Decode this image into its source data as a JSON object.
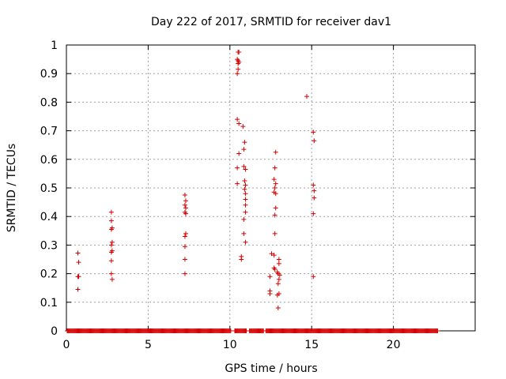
{
  "chart_data": {
    "type": "scatter",
    "title": "Day 222 of 2017, SRMTID for receiver dav1",
    "xlabel": "GPS time / hours",
    "ylabel": "SRMTID / TECUs",
    "xlim": [
      0,
      25
    ],
    "ylim": [
      0,
      1
    ],
    "xticks": [
      "0",
      "5",
      "10",
      "15",
      "20"
    ],
    "yticks": [
      "0",
      "0.1",
      "0.2",
      "0.3",
      "0.4",
      "0.5",
      "0.6",
      "0.7",
      "0.8",
      "0.9",
      "1"
    ],
    "grid": true,
    "legend": "none",
    "marker": "+",
    "color": "#d40000",
    "baseline": {
      "y": 0,
      "x_start": 0.05,
      "x_end": 22.7,
      "x_step": 0.05
    },
    "points": [
      [
        0.7,
        0.272
      ],
      [
        0.75,
        0.24
      ],
      [
        0.7,
        0.19
      ],
      [
        0.75,
        0.19
      ],
      [
        0.7,
        0.145
      ],
      [
        2.75,
        0.415
      ],
      [
        2.75,
        0.385
      ],
      [
        2.8,
        0.36
      ],
      [
        2.75,
        0.355
      ],
      [
        2.8,
        0.31
      ],
      [
        2.75,
        0.3
      ],
      [
        2.8,
        0.28
      ],
      [
        2.75,
        0.275
      ],
      [
        2.75,
        0.245
      ],
      [
        2.75,
        0.2
      ],
      [
        2.8,
        0.18
      ],
      [
        7.25,
        0.475
      ],
      [
        7.3,
        0.455
      ],
      [
        7.25,
        0.44
      ],
      [
        7.3,
        0.43
      ],
      [
        7.25,
        0.415
      ],
      [
        7.3,
        0.41
      ],
      [
        7.3,
        0.34
      ],
      [
        7.25,
        0.33
      ],
      [
        7.25,
        0.295
      ],
      [
        7.25,
        0.25
      ],
      [
        7.25,
        0.2
      ],
      [
        10.5,
        0.975
      ],
      [
        10.55,
        0.975
      ],
      [
        10.45,
        0.95
      ],
      [
        10.5,
        0.945
      ],
      [
        10.55,
        0.94
      ],
      [
        10.5,
        0.935
      ],
      [
        10.45,
        0.9
      ],
      [
        10.5,
        0.915
      ],
      [
        10.45,
        0.74
      ],
      [
        10.55,
        0.725
      ],
      [
        10.8,
        0.715
      ],
      [
        10.9,
        0.66
      ],
      [
        10.85,
        0.635
      ],
      [
        10.55,
        0.62
      ],
      [
        10.45,
        0.57
      ],
      [
        10.85,
        0.575
      ],
      [
        10.95,
        0.565
      ],
      [
        10.9,
        0.525
      ],
      [
        10.95,
        0.51
      ],
      [
        10.45,
        0.515
      ],
      [
        10.9,
        0.495
      ],
      [
        10.95,
        0.48
      ],
      [
        10.95,
        0.46
      ],
      [
        10.95,
        0.44
      ],
      [
        10.95,
        0.415
      ],
      [
        10.85,
        0.39
      ],
      [
        10.85,
        0.34
      ],
      [
        10.95,
        0.31
      ],
      [
        10.7,
        0.26
      ],
      [
        10.7,
        0.25
      ],
      [
        12.8,
        0.625
      ],
      [
        12.75,
        0.57
      ],
      [
        12.7,
        0.53
      ],
      [
        12.8,
        0.515
      ],
      [
        12.75,
        0.5
      ],
      [
        12.7,
        0.485
      ],
      [
        12.8,
        0.48
      ],
      [
        12.8,
        0.43
      ],
      [
        12.75,
        0.405
      ],
      [
        12.75,
        0.34
      ],
      [
        12.55,
        0.27
      ],
      [
        12.7,
        0.265
      ],
      [
        13.0,
        0.25
      ],
      [
        13.0,
        0.235
      ],
      [
        12.7,
        0.22
      ],
      [
        12.75,
        0.215
      ],
      [
        12.95,
        0.2
      ],
      [
        12.9,
        0.205
      ],
      [
        13.05,
        0.195
      ],
      [
        12.45,
        0.19
      ],
      [
        13.0,
        0.18
      ],
      [
        12.95,
        0.165
      ],
      [
        12.45,
        0.14
      ],
      [
        12.45,
        0.13
      ],
      [
        13.0,
        0.13
      ],
      [
        12.9,
        0.125
      ],
      [
        12.95,
        0.08
      ],
      [
        14.7,
        0.82
      ],
      [
        15.1,
        0.695
      ],
      [
        15.15,
        0.665
      ],
      [
        15.1,
        0.51
      ],
      [
        15.15,
        0.49
      ],
      [
        15.15,
        0.465
      ],
      [
        15.1,
        0.41
      ],
      [
        15.1,
        0.19
      ]
    ]
  }
}
